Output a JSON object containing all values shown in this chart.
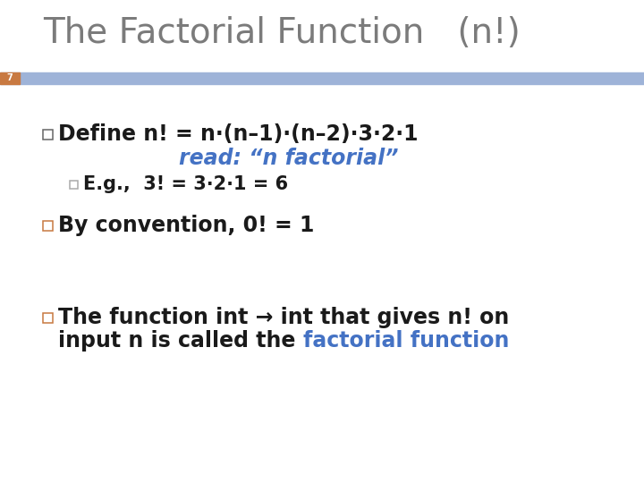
{
  "title": "The Factorial Function   (n!)",
  "title_color": "#7B7B7B",
  "slide_num": "7",
  "header_bar_color": "#9EB3D8",
  "left_bar_color": "#C87941",
  "background_color": "#FFFFFF",
  "bullet_color": "#404040",
  "read_italic_color": "#4472C4",
  "highlight_color": "#4472C4",
  "bullet1_line1": "Define n! = n·(n–1)·(n–2)·3·2·1",
  "bullet1_line2": "read: “n factorial”",
  "bullet1_line3": "E.g.,  3! = 3·2·1 = 6",
  "bullet2": "By convention, 0! = 1",
  "bullet3_part1": "The function int → int that gives n! on",
  "bullet3_part2": "input n is called the ",
  "bullet3_highlight": "factorial function",
  "title_fontsize": 28,
  "body_fontsize": 17,
  "sub_fontsize": 15
}
